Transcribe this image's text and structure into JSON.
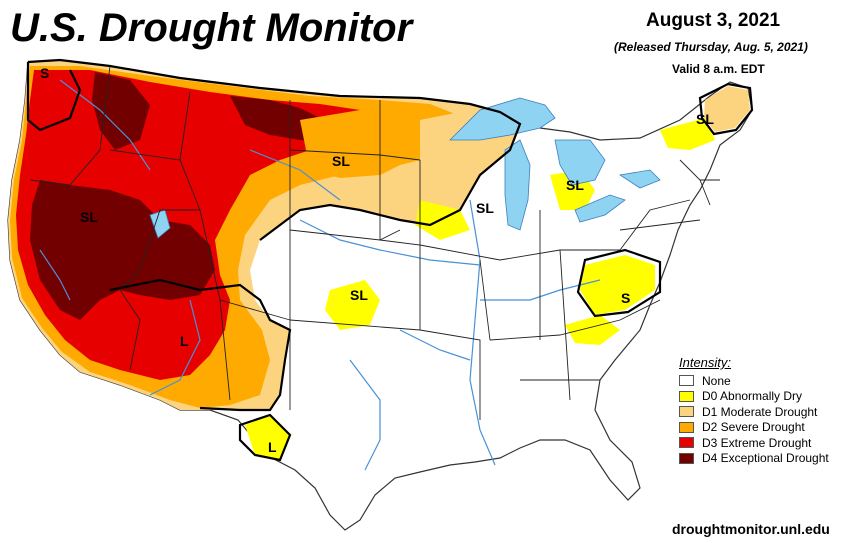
{
  "header": {
    "title": "U.S. Drought Monitor",
    "date": "August 3, 2021",
    "released": "(Released Thursday, Aug. 5, 2021)",
    "valid": "Valid 8 a.m. EDT"
  },
  "legend": {
    "title": "Intensity:",
    "items": [
      {
        "label": "None",
        "color": "#ffffff"
      },
      {
        "label": "D0 Abnormally Dry",
        "color": "#ffff00"
      },
      {
        "label": "D1 Moderate Drought",
        "color": "#fcd37f"
      },
      {
        "label": "D2 Severe Drought",
        "color": "#ffaa00"
      },
      {
        "label": "D3 Extreme Drought",
        "color": "#e60000"
      },
      {
        "label": "D4 Exceptional Drought",
        "color": "#730000"
      }
    ]
  },
  "map_labels": {
    "wa_s": "S",
    "ca_nv_sl": "SL",
    "nd_sl": "SL",
    "mn_sl": "SL",
    "mi_sl": "SL",
    "me_sl": "SL",
    "ks_sl": "SL",
    "va_s": "S",
    "az_l": "L",
    "tx_l": "L"
  },
  "colors": {
    "land": "#ffffff",
    "water": "#8fd3f2",
    "river": "#4a90d9",
    "d0": "#ffff00",
    "d1": "#fcd37f",
    "d2": "#ffaa00",
    "d3": "#e60000",
    "d4": "#730000"
  },
  "footer": {
    "url": "droughtmonitor.unl.edu"
  }
}
